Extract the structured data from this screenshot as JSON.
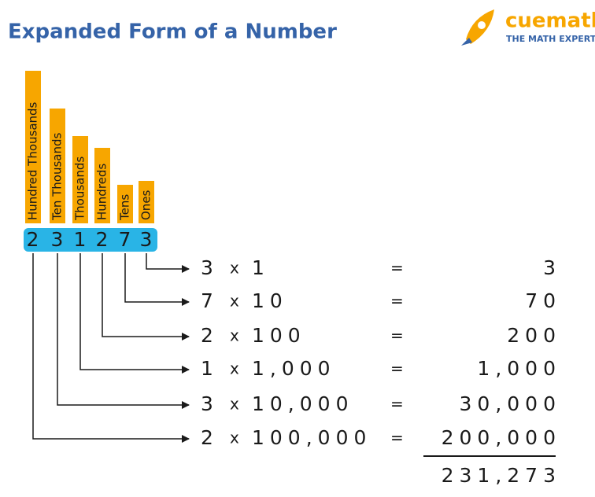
{
  "header": {
    "title": "Expanded Form of a Number",
    "logo": {
      "brand": "cuemath",
      "tagline": "THE MATH EXPERT"
    }
  },
  "place_values": [
    {
      "label": "Hundred Thousands",
      "digit": "2"
    },
    {
      "label": "Ten Thousands",
      "digit": "3"
    },
    {
      "label": "Thousands",
      "digit": "1"
    },
    {
      "label": "Hundreds",
      "digit": "2"
    },
    {
      "label": "Tens",
      "digit": "7"
    },
    {
      "label": "Ones",
      "digit": "3"
    }
  ],
  "rows": [
    {
      "digit": "3",
      "times": "x",
      "multiplier": "1",
      "equals": "=",
      "result": "3"
    },
    {
      "digit": "7",
      "times": "x",
      "multiplier": "10",
      "equals": "=",
      "result": "70"
    },
    {
      "digit": "2",
      "times": "x",
      "multiplier": "100",
      "equals": "=",
      "result": "200"
    },
    {
      "digit": "1",
      "times": "x",
      "multiplier": "1,000",
      "equals": "=",
      "result": "1,000"
    },
    {
      "digit": "3",
      "times": "x",
      "multiplier": "10,000",
      "equals": "=",
      "result": "30,000"
    },
    {
      "digit": "2",
      "times": "x",
      "multiplier": "100,000",
      "equals": "=",
      "result": "200,000"
    }
  ],
  "total": "231,273"
}
